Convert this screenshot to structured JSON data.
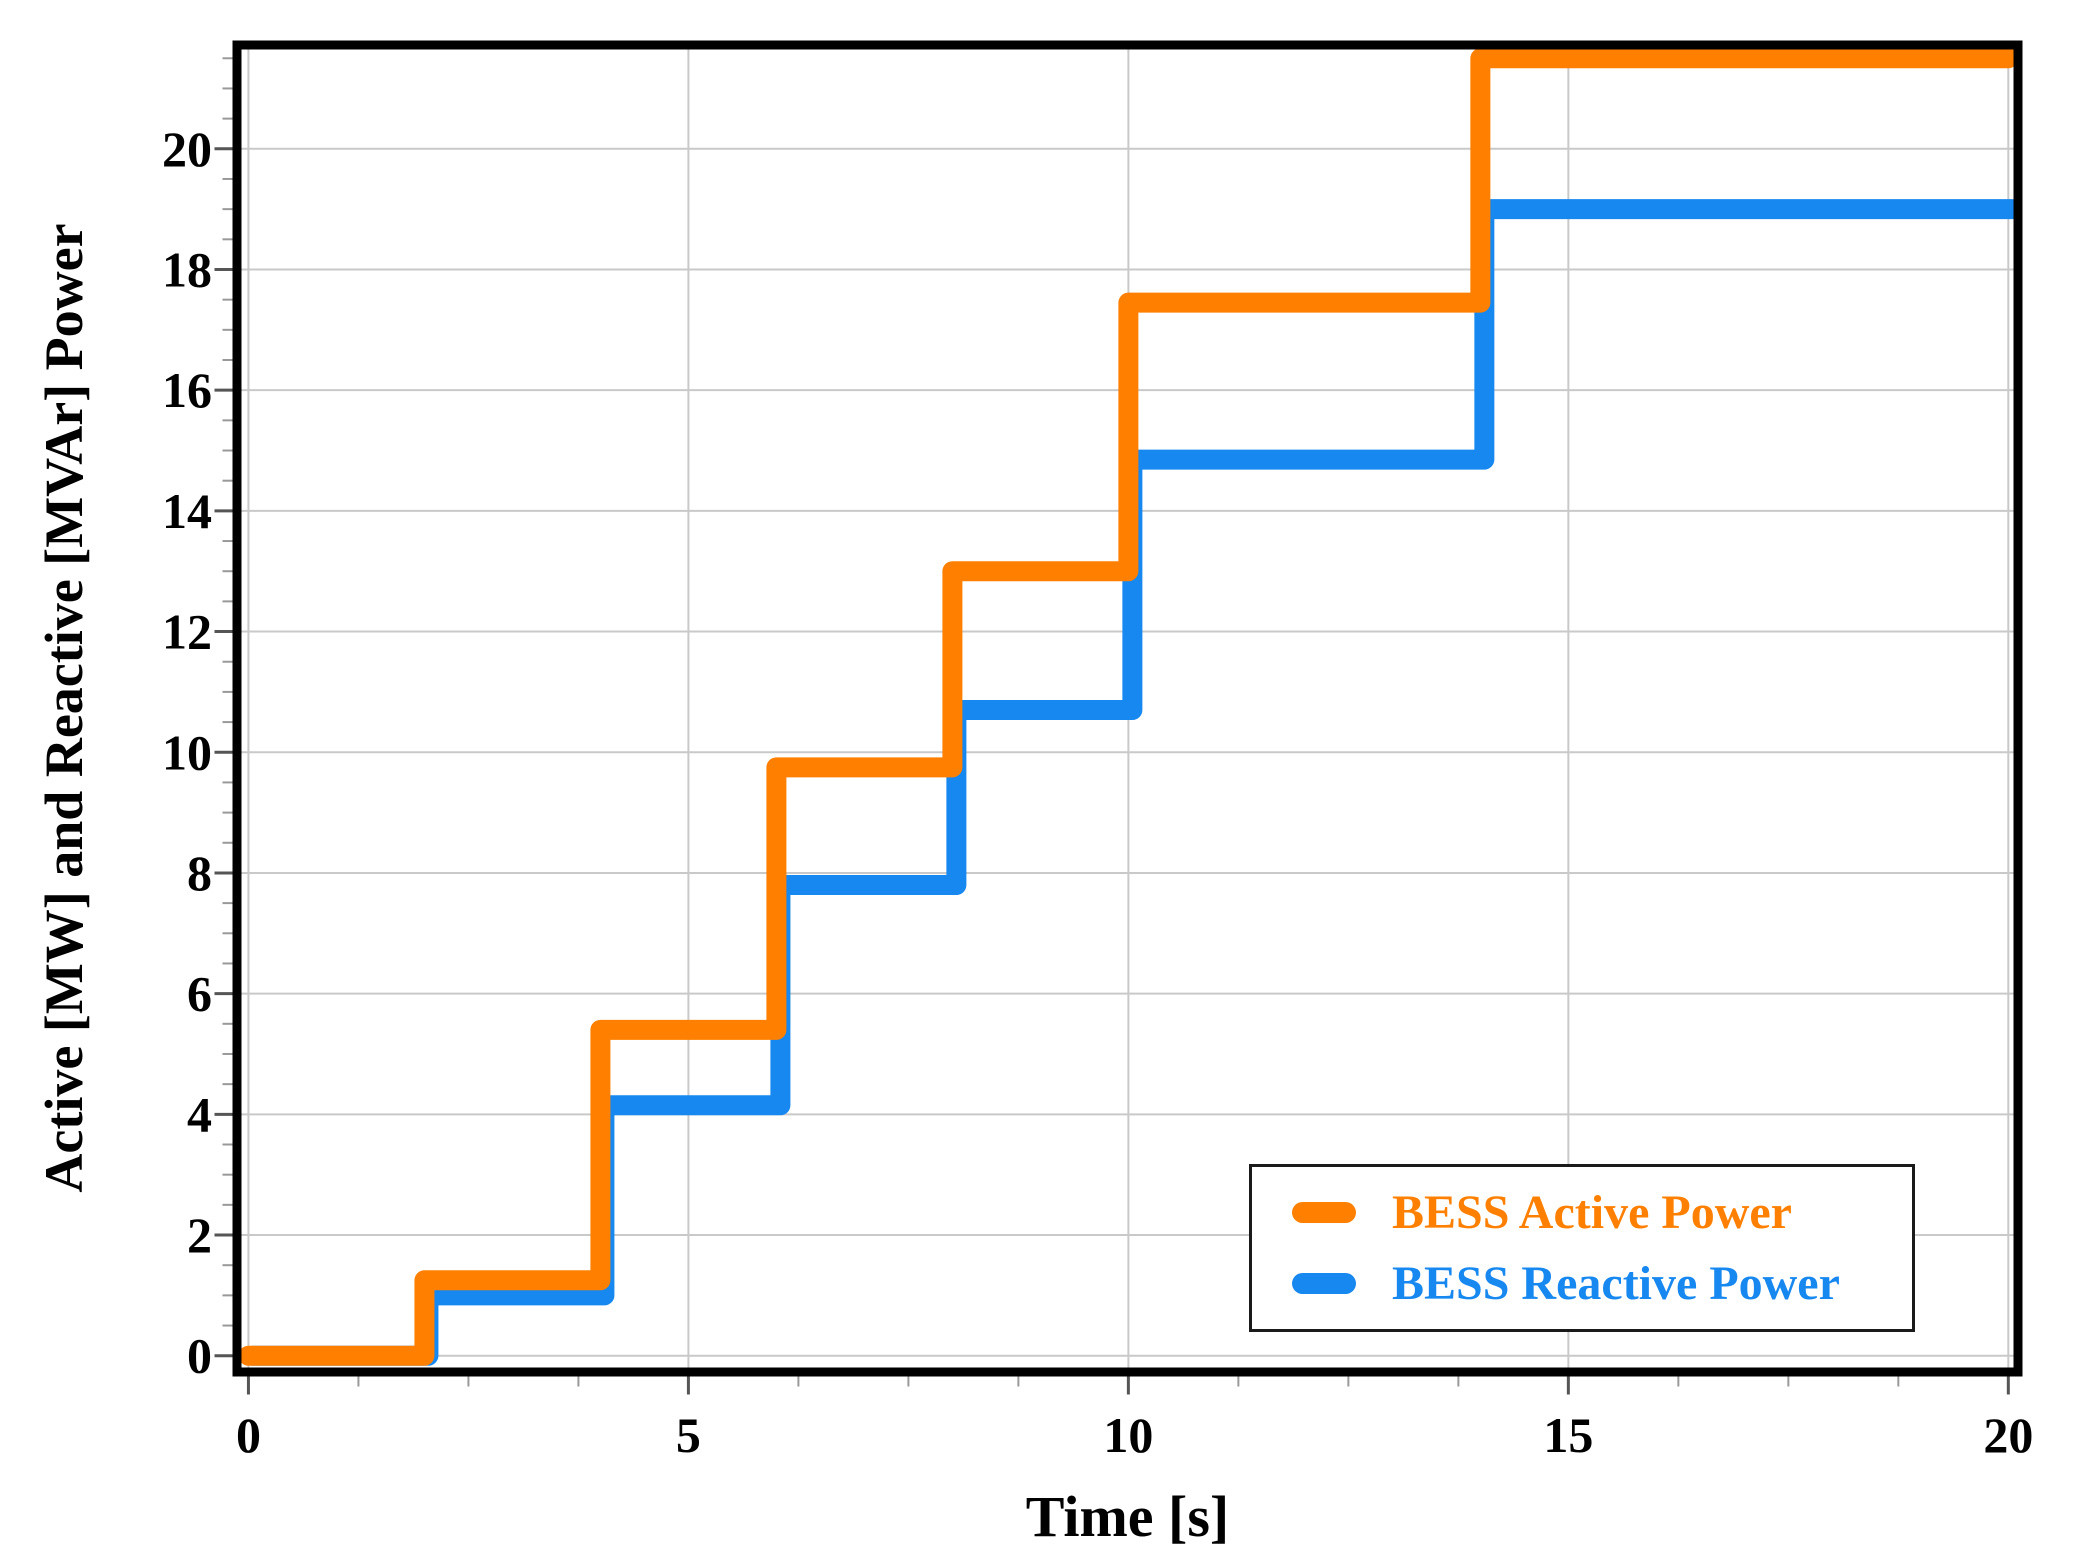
{
  "figure": {
    "background": "#ffffff"
  },
  "chart_data": {
    "type": "line",
    "line_style": "step-post",
    "title": "",
    "xlabel": "Time [s]",
    "ylabel": "Active [MW] and Reactive [MVAr] Power",
    "xlim": [
      -0.13,
      20.11
    ],
    "ylim": [
      -0.27,
      21.72
    ],
    "x_ticks": [
      0,
      5,
      10,
      15,
      20
    ],
    "x_tick_labels": [
      "0",
      "5",
      "10",
      "15",
      "20"
    ],
    "y_ticks": [
      0,
      2,
      4,
      6,
      8,
      10,
      12,
      14,
      16,
      18,
      20
    ],
    "y_tick_labels": [
      "0",
      "2",
      "4",
      "6",
      "8",
      "10",
      "12",
      "14",
      "16",
      "18",
      "20"
    ],
    "x_minor_step": 1.25,
    "y_minor_step": 0.5,
    "grid": "major-only",
    "grid_color": "#c9c9c9",
    "x": {
      "step_times": [
        2,
        4,
        6,
        8,
        10,
        14
      ],
      "t_start": 0,
      "t_end": 20
    },
    "series": [
      {
        "name": "BESS Active Power",
        "color": "#FF8000",
        "levels": [
          0,
          1.25,
          5.4,
          9.75,
          13.0,
          17.45,
          21.5
        ]
      },
      {
        "name": "BESS Reactive Power",
        "color": "#1688F0",
        "levels": [
          0,
          1.0,
          4.15,
          7.8,
          10.7,
          14.85,
          19.0
        ]
      }
    ],
    "legend": {
      "position": "lower right"
    }
  }
}
